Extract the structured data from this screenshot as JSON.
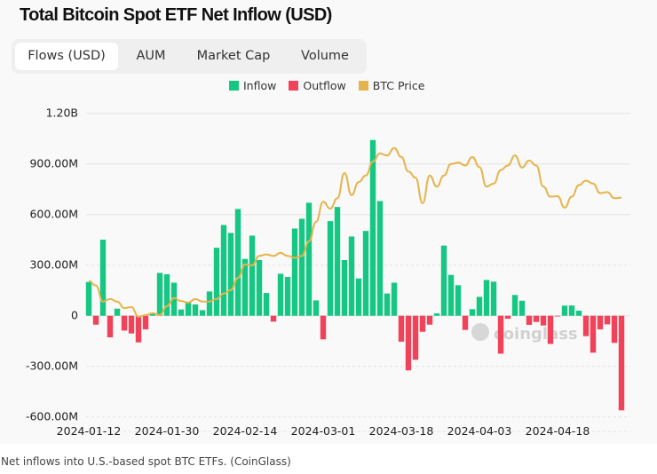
{
  "title": "Total Bitcoin Spot ETF Net Inflow (USD)",
  "tabs": [
    {
      "label": "Flows (USD)",
      "active": true
    },
    {
      "label": "AUM",
      "active": false
    },
    {
      "label": "Market Cap",
      "active": false
    },
    {
      "label": "Volume",
      "active": false
    }
  ],
  "watermark": "coinglass",
  "caption": "Net inflows into U.S.-based spot BTC ETFs. (CoinGlass)",
  "colors": {
    "inflow": "#16c784",
    "outflow": "#f0435a",
    "price": "#e6b44c"
  },
  "chart_data": {
    "type": "bar",
    "legend": [
      "Inflow",
      "Outflow",
      "BTC Price"
    ],
    "legend_position": "top-center",
    "ylim": [
      -600,
      1200
    ],
    "y_ticks": [
      {
        "value": 1200,
        "label": "1.20B"
      },
      {
        "value": 900,
        "label": "900.00M"
      },
      {
        "value": 600,
        "label": "600.00M"
      },
      {
        "value": 300,
        "label": "300.00M"
      },
      {
        "value": 0,
        "label": "0"
      },
      {
        "value": -300,
        "label": "-300.00M"
      },
      {
        "value": -600,
        "label": "-600.00M"
      }
    ],
    "x_tick_labels": [
      "2024-01-12",
      "2024-01-30",
      "2024-02-14",
      "2024-03-01",
      "2024-03-18",
      "2024-04-03",
      "2024-04-18"
    ],
    "grid": true,
    "categories": [
      "2024-01-12",
      "2024-01-16",
      "2024-01-17",
      "2024-01-18",
      "2024-01-19",
      "2024-01-22",
      "2024-01-23",
      "2024-01-24",
      "2024-01-25",
      "2024-01-26",
      "2024-01-29",
      "2024-01-30",
      "2024-01-31",
      "2024-02-01",
      "2024-02-02",
      "2024-02-05",
      "2024-02-06",
      "2024-02-07",
      "2024-02-08",
      "2024-02-09",
      "2024-02-12",
      "2024-02-13",
      "2024-02-14",
      "2024-02-15",
      "2024-02-16",
      "2024-02-20",
      "2024-02-21",
      "2024-02-22",
      "2024-02-23",
      "2024-02-26",
      "2024-02-27",
      "2024-02-28",
      "2024-02-29",
      "2024-03-01",
      "2024-03-04",
      "2024-03-05",
      "2024-03-06",
      "2024-03-07",
      "2024-03-08",
      "2024-03-11",
      "2024-03-12",
      "2024-03-13",
      "2024-03-14",
      "2024-03-15",
      "2024-03-18",
      "2024-03-19",
      "2024-03-20",
      "2024-03-21",
      "2024-03-22",
      "2024-03-25",
      "2024-03-26",
      "2024-03-27",
      "2024-03-28",
      "2024-04-01",
      "2024-04-02",
      "2024-04-03",
      "2024-04-04",
      "2024-04-05",
      "2024-04-08",
      "2024-04-09",
      "2024-04-10",
      "2024-04-11",
      "2024-04-12",
      "2024-04-15",
      "2024-04-16",
      "2024-04-17",
      "2024-04-18",
      "2024-04-19",
      "2024-04-22",
      "2024-04-23",
      "2024-04-24",
      "2024-04-25",
      "2024-04-26",
      "2024-04-29",
      "2024-04-30",
      "2024-05-01"
    ],
    "flow_unit": "M USD",
    "series": [
      {
        "name": "Inflow/Outflow",
        "values": [
          200,
          -53,
          451,
          -128,
          42,
          -88,
          -105,
          -158,
          -81,
          12,
          254,
          246,
          196,
          37,
          77,
          67,
          33,
          144,
          403,
          538,
          491,
          633,
          337,
          475,
          330,
          135,
          -35,
          249,
          230,
          517,
          575,
          670,
          91,
          -140,
          561,
          645,
          330,
          470,
          221,
          503,
          1042,
          680,
          132,
          196,
          -154,
          -324,
          -261,
          -95,
          -53,
          14,
          416,
          242,
          181,
          -84,
          39,
          112,
          212,
          202,
          -225,
          -18,
          123,
          89,
          -54,
          -37,
          -58,
          -167,
          -2,
          60,
          61,
          30,
          -121,
          -219,
          -81,
          -51,
          -161,
          -561
        ]
      },
      {
        "name": "BTC Price",
        "unit": "K USD",
        "values": [
          46.6,
          45.7,
          42.5,
          43.0,
          42.5,
          41.2,
          41.4,
          39.5,
          39.8,
          40.2,
          39.8,
          41.6,
          43.2,
          42.6,
          42.3,
          43.0,
          42.5,
          42.5,
          43.0,
          44.1,
          44.8,
          47.2,
          49.9,
          49.7,
          51.6,
          51.9,
          51.6,
          52.2,
          51.6,
          51.2,
          51.6,
          54.5,
          58.4,
          62.4,
          61.0,
          63.1,
          68.1,
          63.7,
          66.3,
          67.6,
          70.4,
          72.0,
          71.6,
          73.1,
          71.3,
          68.4,
          67.2,
          62.1,
          67.6,
          65.4,
          67.6,
          69.9,
          70.2,
          69.6,
          71.3,
          69.3,
          65.4,
          66.0,
          68.7,
          69.6,
          71.6,
          69.2,
          70.6,
          69.6,
          65.4,
          63.4,
          63.5,
          61.2,
          63.4,
          65.7,
          66.6,
          66.0,
          64.1,
          64.3,
          63.1,
          63.2
        ]
      }
    ]
  }
}
